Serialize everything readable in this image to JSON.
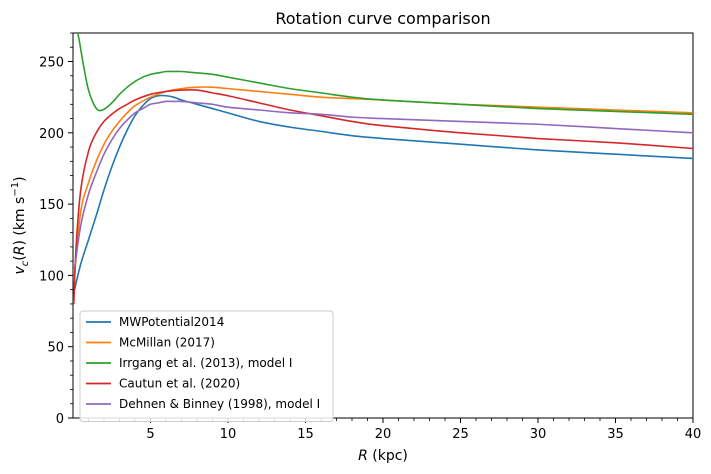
{
  "chart_data": {
    "type": "line",
    "title": "Rotation curve comparison",
    "xlabel": "R (kpc)",
    "ylabel": "v_c(R) (km s^-1)",
    "xlim": [
      0,
      40
    ],
    "ylim": [
      0,
      270
    ],
    "xticks": [
      5,
      10,
      15,
      20,
      25,
      30,
      35,
      40
    ],
    "yticks": [
      0,
      50,
      100,
      150,
      200,
      250
    ],
    "grid": false,
    "legend_position": "lower-left",
    "series": [
      {
        "name": "MWPotential2014",
        "color": "#1f77b4",
        "x": [
          0.1,
          0.5,
          1,
          1.5,
          2,
          2.5,
          3,
          3.5,
          4,
          4.5,
          5,
          5.5,
          6,
          6.5,
          7,
          8,
          9,
          10,
          12,
          14,
          16,
          18,
          20,
          25,
          30,
          35,
          40
        ],
        "y": [
          90,
          108,
          125,
          142,
          160,
          176,
          190,
          202,
          212,
          219,
          224,
          226,
          226,
          225,
          223,
          220,
          217,
          214,
          208,
          204,
          201,
          198,
          196,
          192,
          188,
          185,
          182
        ]
      },
      {
        "name": "McMillan (2017)",
        "color": "#ff7f0e",
        "x": [
          0.1,
          0.5,
          1,
          1.5,
          2,
          2.5,
          3,
          3.5,
          4,
          5,
          6,
          7,
          8,
          9,
          10,
          12,
          14,
          16,
          18,
          20,
          25,
          30,
          35,
          40
        ],
        "y": [
          100,
          145,
          165,
          180,
          192,
          201,
          208,
          214,
          219,
          225,
          229,
          231,
          232,
          232,
          231,
          229,
          227,
          225,
          224,
          223,
          220,
          218,
          216,
          214
        ]
      },
      {
        "name": "Irrgang et al. (2013), model I",
        "color": "#2ca02c",
        "x": [
          0.2,
          0.4,
          0.6,
          0.8,
          1,
          1.3,
          1.6,
          1.9,
          2.2,
          2.6,
          3,
          3.5,
          4,
          4.5,
          5,
          5.5,
          6,
          6.5,
          7,
          8,
          9,
          10,
          12,
          14,
          16,
          18,
          20,
          25,
          30,
          35,
          40
        ],
        "y": [
          275,
          265,
          252,
          240,
          230,
          221,
          216,
          216,
          218,
          222,
          227,
          232,
          236,
          239,
          241,
          242,
          243,
          243,
          243,
          242,
          241,
          239,
          235,
          231,
          228,
          225,
          223,
          220,
          217,
          215,
          213
        ]
      },
      {
        "name": "Cautun et al. (2020)",
        "color": "#d62728",
        "x": [
          0.05,
          0.2,
          0.5,
          1,
          1.5,
          2,
          2.5,
          3,
          3.5,
          4,
          5,
          6,
          7,
          8,
          9,
          10,
          12,
          14,
          16,
          18,
          20,
          25,
          30,
          35,
          40
        ],
        "y": [
          80,
          120,
          160,
          187,
          200,
          208,
          213,
          217,
          220,
          223,
          227,
          229,
          230,
          230,
          228,
          226,
          221,
          216,
          212,
          208,
          205,
          200,
          196,
          193,
          189
        ]
      },
      {
        "name": "Dehnen & Binney (1998), model I",
        "color": "#9467bd",
        "x": [
          0.1,
          0.5,
          1,
          1.5,
          2,
          2.5,
          3,
          3.5,
          4,
          4.5,
          5,
          5.5,
          6,
          6.5,
          7,
          8,
          9,
          10,
          12,
          14,
          16,
          18,
          20,
          25,
          30,
          35,
          40
        ],
        "y": [
          105,
          135,
          157,
          172,
          185,
          195,
          203,
          209,
          214,
          217,
          220,
          221,
          222,
          222,
          222,
          221,
          220,
          218,
          216,
          214,
          213,
          211,
          210,
          208,
          206,
          203,
          200
        ]
      }
    ]
  }
}
